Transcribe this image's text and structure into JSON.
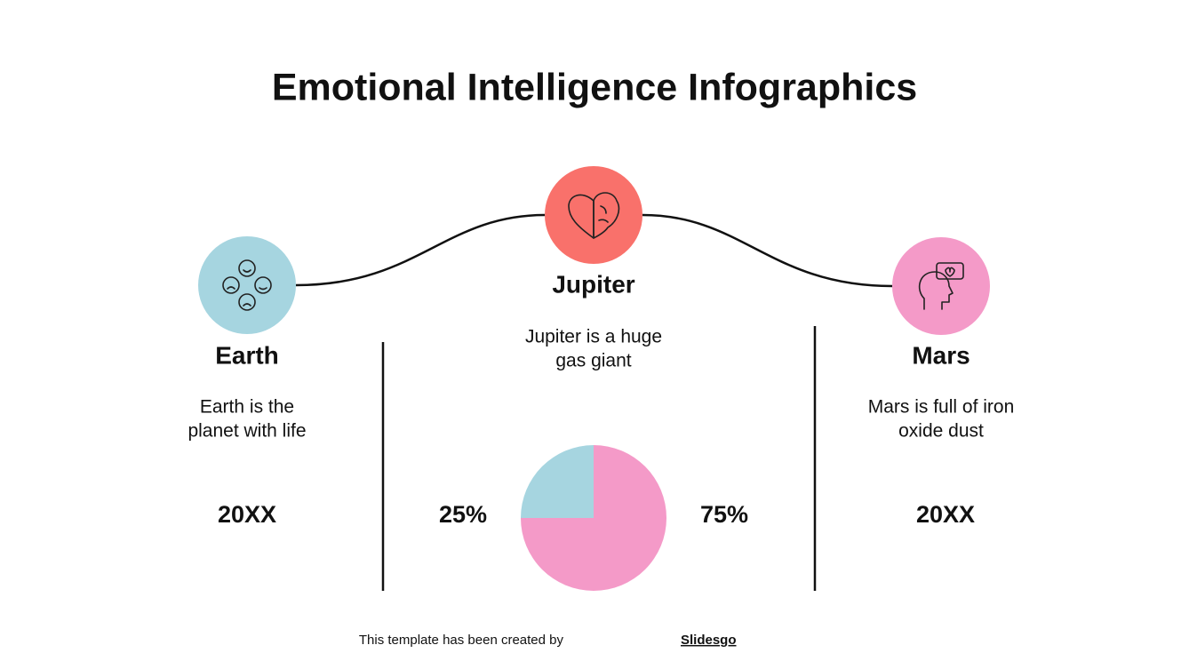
{
  "title": "Emotional Intelligence Infographics",
  "columns": [
    {
      "name": "Earth",
      "description": [
        "Earth is the",
        "planet with life"
      ],
      "value": "20XX"
    },
    {
      "name": "Jupiter",
      "description": [
        "Jupiter is a huge",
        "gas giant"
      ]
    },
    {
      "name": "Mars",
      "description": [
        "Mars is full of iron",
        "oxide dust"
      ],
      "value": "20XX"
    }
  ],
  "pie": {
    "type": "pie",
    "values": [
      25,
      75
    ],
    "value_labels": [
      "25%",
      "75%"
    ],
    "colors": [
      "#a6d5e0",
      "#f49ac8"
    ]
  },
  "footer": {
    "text": "This template has been created by",
    "link": "Slidesgo"
  }
}
